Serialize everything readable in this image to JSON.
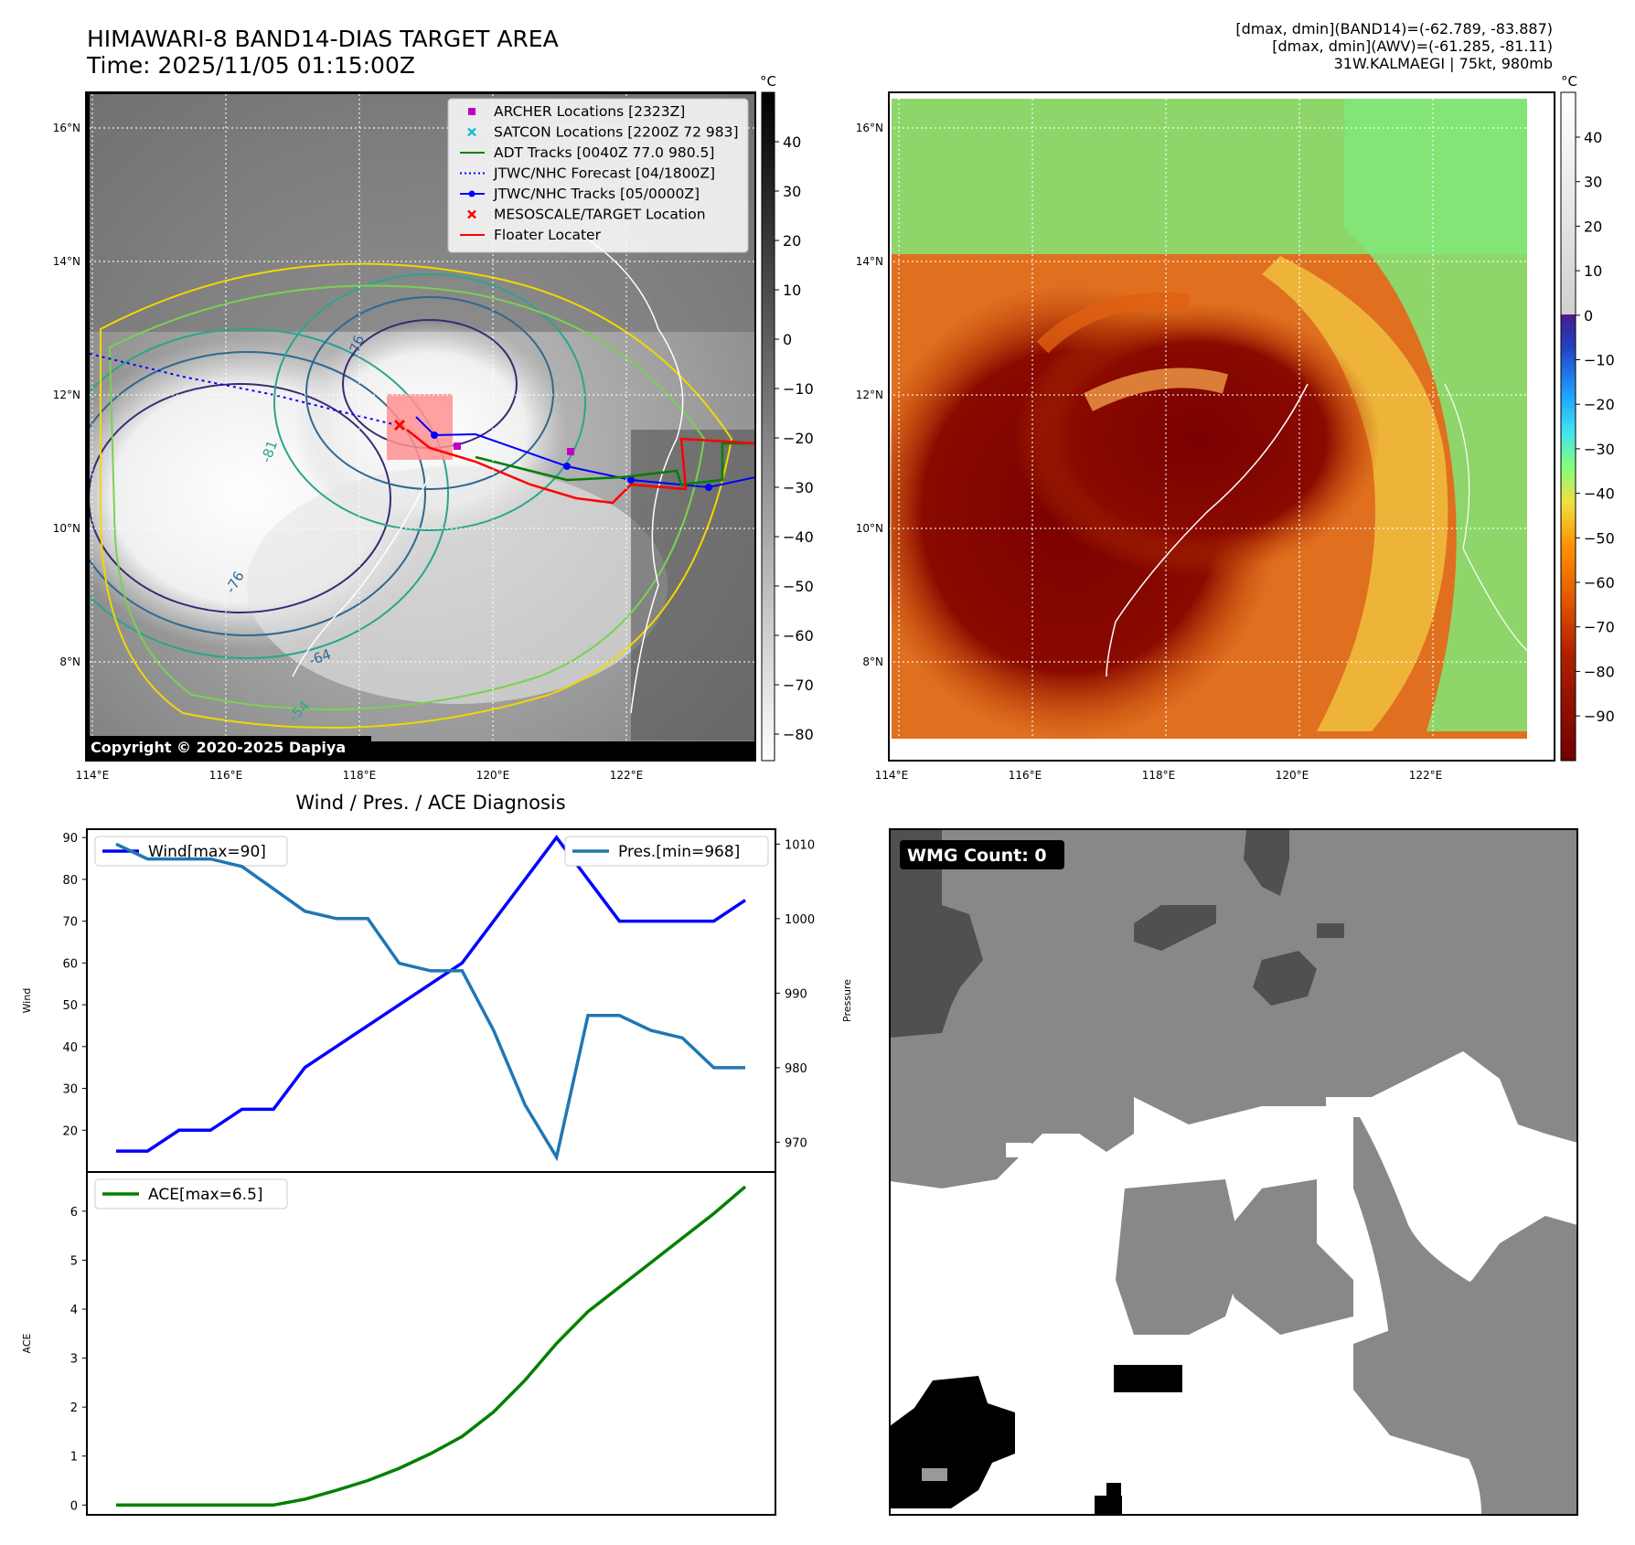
{
  "header": {
    "title_line1": "HIMAWARI-8 BAND14-DIAS TARGET AREA",
    "title_line2": "Time: 2025/11/05 01:15:00Z",
    "info_line1": "[dmax, dmin](BAND14)=(-62.789, -83.887)",
    "info_line2": "[dmax, dmin](AWV)=(-61.285, -81.11)",
    "info_line3": "31W.KALMAEGI | 75kt, 980mb"
  },
  "map_axes": {
    "lon_labels": [
      "114°E",
      "116°E",
      "118°E",
      "120°E",
      "122°E"
    ],
    "lat_labels": [
      "16°N",
      "14°N",
      "12°N",
      "10°N",
      "8°N"
    ]
  },
  "ir_map": {
    "copyright": "Copyright © 2020-2025 Dapiya",
    "legend": [
      {
        "label": "ARCHER Locations [2323Z]",
        "color": "#c000c0",
        "marker": "square"
      },
      {
        "label": "SATCON Locations [2200Z 72 983]",
        "color": "#17becf",
        "marker": "x"
      },
      {
        "label": "ADT Tracks [0040Z 77.0 980.5]",
        "color": "#008000",
        "marker": "line"
      },
      {
        "label": "JTWC/NHC Forecast [04/1800Z]",
        "color": "#0000ff",
        "marker": "dotted"
      },
      {
        "label": "JTWC/NHC Tracks [05/0000Z]",
        "color": "#0000ff",
        "marker": "line-dot"
      },
      {
        "label": "MESOSCALE/TARGET Location",
        "color": "#ff0000",
        "marker": "x"
      },
      {
        "label": "Floater Locater",
        "color": "#ff0000",
        "marker": "line"
      }
    ],
    "contour_labels": [
      "-76",
      "-81",
      "-76",
      "-64",
      "-54"
    ],
    "colorbar": {
      "unit": "°C",
      "ticks": [
        "40",
        "30",
        "20",
        "10",
        "0",
        "−10",
        "−20",
        "−30",
        "−40",
        "−50",
        "−60",
        "−70",
        "−80"
      ]
    }
  },
  "awv_map": {
    "colorbar": {
      "unit": "°C",
      "ticks": [
        "40",
        "30",
        "20",
        "10",
        "0",
        "−10",
        "−20",
        "−30",
        "−40",
        "−50",
        "−60",
        "−70",
        "−80",
        "−90"
      ]
    }
  },
  "chart_data": [
    {
      "type": "line",
      "title": "Wind / Pres. / ACE Diagnosis",
      "ylabel": "Wind",
      "ylim": [
        10,
        92
      ],
      "yticks": [
        "20",
        "30",
        "40",
        "50",
        "60",
        "70",
        "80",
        "90"
      ],
      "series": [
        {
          "name": "Wind[max=90]",
          "color": "#0000ff",
          "values": [
            15,
            15,
            20,
            20,
            25,
            25,
            35,
            40,
            45,
            50,
            55,
            60,
            70,
            80,
            90,
            80,
            70,
            70,
            70,
            70,
            75
          ]
        }
      ]
    },
    {
      "type": "line",
      "ylabel": "Pressure",
      "ylim": [
        966,
        1012
      ],
      "yticks": [
        "970",
        "980",
        "990",
        "1000",
        "1010"
      ],
      "series": [
        {
          "name": "Pres.[min=968]",
          "color": "#1f77b4",
          "values": [
            1010,
            1008,
            1008,
            1008,
            1007,
            1004,
            1001,
            1000,
            1000,
            994,
            993,
            993,
            985,
            975,
            968,
            987,
            987,
            985,
            984,
            980,
            980
          ]
        }
      ]
    },
    {
      "type": "line",
      "ylabel": "ACE",
      "ylim": [
        -0.2,
        6.8
      ],
      "yticks": [
        "0",
        "1",
        "2",
        "3",
        "4",
        "5",
        "6"
      ],
      "series": [
        {
          "name": "ACE[max=6.5]",
          "color": "#008000",
          "values": [
            0,
            0,
            0,
            0,
            0,
            0,
            0.12,
            0.3,
            0.5,
            0.75,
            1.05,
            1.4,
            1.9,
            2.55,
            3.3,
            3.95,
            4.45,
            4.95,
            5.45,
            5.95,
            6.5
          ]
        }
      ]
    }
  ],
  "wmg": {
    "count_label": "WMG Count: 0"
  }
}
